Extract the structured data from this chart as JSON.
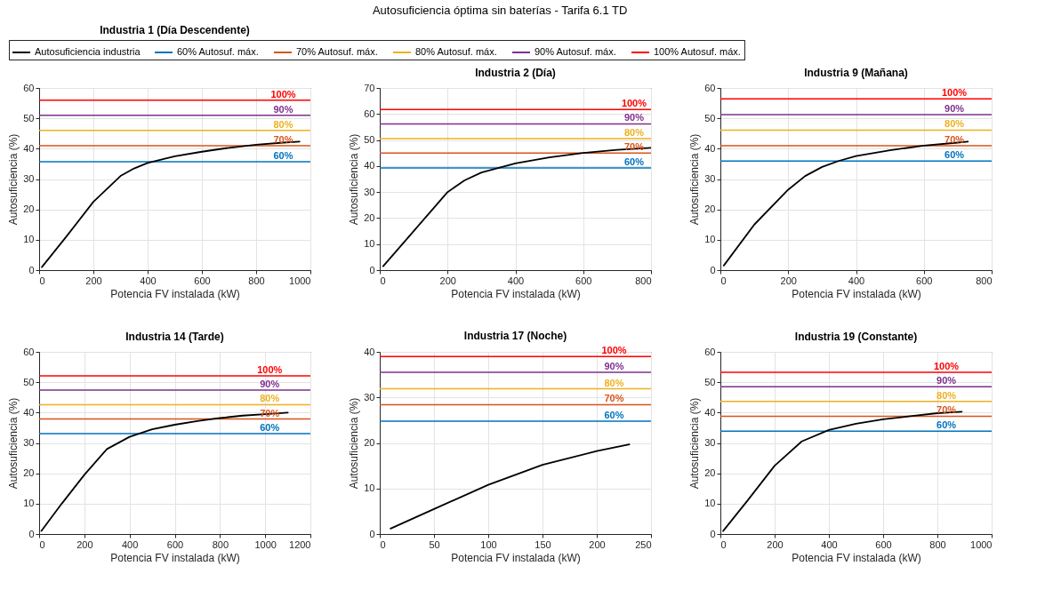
{
  "chart_data": [
    {
      "type": "line",
      "title": "Industria 1 (Día Descendente)",
      "xlabel": "Potencia FV instalada (kW)",
      "ylabel": "Autosuficiencia (%)",
      "xlim": [
        0,
        1000
      ],
      "xticks": [
        0,
        200,
        400,
        600,
        800,
        1000
      ],
      "ylim": [
        0,
        60
      ],
      "yticks": [
        0,
        10,
        20,
        30,
        40,
        50,
        60
      ],
      "grid": true,
      "legend": "top",
      "line_style": "solid",
      "annotations": [
        "Autosuficiencia óptima sin baterías - Tarifa 6.1 TD",
        {
          "text": "100%",
          "x": 900,
          "y": 56
        },
        {
          "text": "90%",
          "x": 900,
          "y": 51
        },
        {
          "text": "80%",
          "x": 900,
          "y": 46
        },
        {
          "text": "70%",
          "x": 900,
          "y": 41
        },
        {
          "text": "60%",
          "x": 900,
          "y": 35.7
        }
      ],
      "series": [
        {
          "name": "Autosuficiencia industria",
          "color": "#000000",
          "x": [
            10,
            100,
            200,
            300,
            350,
            400,
            500,
            600,
            700,
            800,
            900,
            960
          ],
          "values": [
            1,
            11,
            22.5,
            31,
            33.5,
            35.3,
            37.5,
            39,
            40.3,
            41.3,
            42,
            42.3
          ]
        },
        {
          "name": "60% Autosuf. máx.",
          "color": "#0072bd",
          "x": [
            0,
            1000
          ],
          "values": [
            35.7,
            35.7
          ]
        },
        {
          "name": "70% Autosuf. máx.",
          "color": "#d95319",
          "x": [
            0,
            1000
          ],
          "values": [
            41,
            41
          ]
        },
        {
          "name": "80% Autosuf. máx.",
          "color": "#edb120",
          "x": [
            0,
            1000
          ],
          "values": [
            46,
            46
          ]
        },
        {
          "name": "90% Autosuf. máx.",
          "color": "#7e2f8e",
          "x": [
            0,
            1000
          ],
          "values": [
            51,
            51
          ]
        },
        {
          "name": "100% Autosuf. máx.",
          "color": "#ff0000",
          "x": [
            0,
            1000
          ],
          "values": [
            56,
            56
          ]
        }
      ]
    },
    {
      "type": "line",
      "title": "Industria 2 (Día)",
      "xlabel": "Potencia FV instalada (kW)",
      "ylabel": "Autosuficiencia (%)",
      "xlim": [
        0,
        800
      ],
      "xticks": [
        0,
        200,
        400,
        600,
        800
      ],
      "ylim": [
        0,
        70
      ],
      "yticks": [
        0,
        10,
        20,
        30,
        40,
        50,
        60,
        70
      ],
      "grid": true,
      "line_style": "solid",
      "annotations": [
        {
          "text": "100%",
          "x": 750,
          "y": 61.7
        },
        {
          "text": "90%",
          "x": 750,
          "y": 56.2
        },
        {
          "text": "80%",
          "x": 750,
          "y": 50.5
        },
        {
          "text": "70%",
          "x": 750,
          "y": 45
        },
        {
          "text": "60%",
          "x": 750,
          "y": 39.3
        }
      ],
      "series": [
        {
          "color": "#000000",
          "x": [
            10,
            100,
            150,
            200,
            250,
            300,
            400,
            500,
            600,
            700,
            800
          ],
          "values": [
            1.5,
            15,
            22.5,
            30,
            34.5,
            37.5,
            41,
            43.3,
            45,
            46.2,
            47
          ]
        },
        {
          "color": "#0072bd",
          "x": [
            0,
            800
          ],
          "values": [
            39.3,
            39.3
          ]
        },
        {
          "color": "#d95319",
          "x": [
            0,
            800
          ],
          "values": [
            45,
            45
          ]
        },
        {
          "color": "#edb120",
          "x": [
            0,
            800
          ],
          "values": [
            50.5,
            50.5
          ]
        },
        {
          "color": "#7e2f8e",
          "x": [
            0,
            800
          ],
          "values": [
            56.2,
            56.2
          ]
        },
        {
          "color": "#ff0000",
          "x": [
            0,
            800
          ],
          "values": [
            61.7,
            61.7
          ]
        }
      ]
    },
    {
      "type": "line",
      "title": "Industria 9 (Mañana)",
      "xlabel": "Potencia FV instalada (kW)",
      "ylabel": "Autosuficiencia (%)",
      "xlim": [
        0,
        800
      ],
      "xticks": [
        0,
        200,
        400,
        600,
        800
      ],
      "ylim": [
        0,
        60
      ],
      "yticks": [
        0,
        10,
        20,
        30,
        40,
        50,
        60
      ],
      "grid": true,
      "line_style": "solid",
      "annotations": [
        {
          "text": "100%",
          "x": 690,
          "y": 56.4
        },
        {
          "text": "90%",
          "x": 690,
          "y": 51.2
        },
        {
          "text": "80%",
          "x": 690,
          "y": 46.1
        },
        {
          "text": "70%",
          "x": 690,
          "y": 41
        },
        {
          "text": "60%",
          "x": 690,
          "y": 35.9
        }
      ],
      "series": [
        {
          "color": "#000000",
          "x": [
            10,
            100,
            200,
            250,
            300,
            350,
            400,
            500,
            600,
            700,
            730
          ],
          "values": [
            1.5,
            15,
            26.5,
            31,
            34,
            36,
            37.6,
            39.5,
            41,
            42,
            42.3
          ]
        },
        {
          "color": "#0072bd",
          "x": [
            0,
            800
          ],
          "values": [
            35.9,
            35.9
          ]
        },
        {
          "color": "#d95319",
          "x": [
            0,
            800
          ],
          "values": [
            41,
            41
          ]
        },
        {
          "color": "#edb120",
          "x": [
            0,
            800
          ],
          "values": [
            46.1,
            46.1
          ]
        },
        {
          "color": "#7e2f8e",
          "x": [
            0,
            800
          ],
          "values": [
            51.2,
            51.2
          ]
        },
        {
          "color": "#ff0000",
          "x": [
            0,
            800
          ],
          "values": [
            56.4,
            56.4
          ]
        }
      ]
    },
    {
      "type": "line",
      "title": "Industria 14 (Tarde)",
      "xlabel": "Potencia FV instalada (kW)",
      "ylabel": "Autosuficiencia (%)",
      "xlim": [
        0,
        1200
      ],
      "xticks": [
        0,
        200,
        400,
        600,
        800,
        1000,
        1200
      ],
      "ylim": [
        0,
        60
      ],
      "yticks": [
        0,
        10,
        20,
        30,
        40,
        50,
        60
      ],
      "grid": true,
      "line_style": "solid",
      "annotations": [
        {
          "text": "100%",
          "x": 1020,
          "y": 52.1
        },
        {
          "text": "90%",
          "x": 1020,
          "y": 47.4
        },
        {
          "text": "80%",
          "x": 1020,
          "y": 42.6
        },
        {
          "text": "70%",
          "x": 1020,
          "y": 37.9
        },
        {
          "text": "60%",
          "x": 1020,
          "y": 33.1
        }
      ],
      "series": [
        {
          "color": "#000000",
          "x": [
            10,
            100,
            200,
            300,
            400,
            500,
            600,
            700,
            800,
            900,
            1000,
            1100
          ],
          "values": [
            1,
            10,
            19.5,
            28,
            32,
            34.5,
            36,
            37.2,
            38.2,
            39,
            39.5,
            40
          ]
        },
        {
          "color": "#0072bd",
          "x": [
            0,
            1200
          ],
          "values": [
            33.1,
            33.1
          ]
        },
        {
          "color": "#d95319",
          "x": [
            0,
            1200
          ],
          "values": [
            37.9,
            37.9
          ]
        },
        {
          "color": "#edb120",
          "x": [
            0,
            1200
          ],
          "values": [
            42.6,
            42.6
          ]
        },
        {
          "color": "#7e2f8e",
          "x": [
            0,
            1200
          ],
          "values": [
            47.4,
            47.4
          ]
        },
        {
          "color": "#ff0000",
          "x": [
            0,
            1200
          ],
          "values": [
            52.1,
            52.1
          ]
        }
      ]
    },
    {
      "type": "line",
      "title": "Industria 17 (Noche)",
      "xlabel": "Potencia FV instalada (kW)",
      "ylabel": "Autosuficiencia (%)",
      "xlim": [
        0,
        250
      ],
      "xticks": [
        0,
        50,
        100,
        150,
        200,
        250
      ],
      "ylim": [
        0,
        40
      ],
      "yticks": [
        0,
        10,
        20,
        30,
        40
      ],
      "grid": true,
      "line_style": "solid",
      "annotations": [
        {
          "text": "100%",
          "x": 216,
          "y": 39
        },
        {
          "text": "90%",
          "x": 216,
          "y": 35.5
        },
        {
          "text": "80%",
          "x": 216,
          "y": 31.9
        },
        {
          "text": "70%",
          "x": 216,
          "y": 28.4
        },
        {
          "text": "60%",
          "x": 216,
          "y": 24.8
        }
      ],
      "series": [
        {
          "color": "#000000",
          "x": [
            10,
            50,
            100,
            150,
            200,
            230
          ],
          "values": [
            1.2,
            5.5,
            10.8,
            15.2,
            18.2,
            19.7
          ]
        },
        {
          "color": "#0072bd",
          "x": [
            0,
            250
          ],
          "values": [
            24.8,
            24.8
          ]
        },
        {
          "color": "#d95319",
          "x": [
            0,
            250
          ],
          "values": [
            28.4,
            28.4
          ]
        },
        {
          "color": "#edb120",
          "x": [
            0,
            250
          ],
          "values": [
            31.9,
            31.9
          ]
        },
        {
          "color": "#7e2f8e",
          "x": [
            0,
            250
          ],
          "values": [
            35.5,
            35.5
          ]
        },
        {
          "color": "#ff0000",
          "x": [
            0,
            250
          ],
          "values": [
            39,
            39
          ]
        }
      ]
    },
    {
      "type": "line",
      "title": "Industria 19 (Constante)",
      "xlabel": "Potencia FV instalada (kW)",
      "ylabel": "Autosuficiencia (%)",
      "xlim": [
        0,
        1000
      ],
      "xticks": [
        0,
        200,
        400,
        600,
        800,
        1000
      ],
      "ylim": [
        0,
        60
      ],
      "yticks": [
        0,
        10,
        20,
        30,
        40,
        50,
        60
      ],
      "grid": true,
      "line_style": "solid",
      "annotations": [
        {
          "text": "100%",
          "x": 833,
          "y": 53.3
        },
        {
          "text": "90%",
          "x": 833,
          "y": 48.5
        },
        {
          "text": "80%",
          "x": 833,
          "y": 43.7
        },
        {
          "text": "70%",
          "x": 833,
          "y": 38.8
        },
        {
          "text": "60%",
          "x": 833,
          "y": 33.9
        }
      ],
      "series": [
        {
          "color": "#000000",
          "x": [
            10,
            100,
            200,
            300,
            400,
            500,
            600,
            700,
            800,
            890
          ],
          "values": [
            1,
            11,
            22.5,
            30.5,
            34.3,
            36.3,
            37.8,
            38.8,
            39.8,
            40.3
          ]
        },
        {
          "color": "#0072bd",
          "x": [
            0,
            1000
          ],
          "values": [
            33.9,
            33.9
          ]
        },
        {
          "color": "#d95319",
          "x": [
            0,
            1000
          ],
          "values": [
            38.8,
            38.8
          ]
        },
        {
          "color": "#edb120",
          "x": [
            0,
            1000
          ],
          "values": [
            43.7,
            43.7
          ]
        },
        {
          "color": "#7e2f8e",
          "x": [
            0,
            1000
          ],
          "values": [
            48.5,
            48.5
          ]
        },
        {
          "color": "#ff0000",
          "x": [
            0,
            1000
          ],
          "values": [
            53.3,
            53.3
          ]
        }
      ]
    }
  ]
}
